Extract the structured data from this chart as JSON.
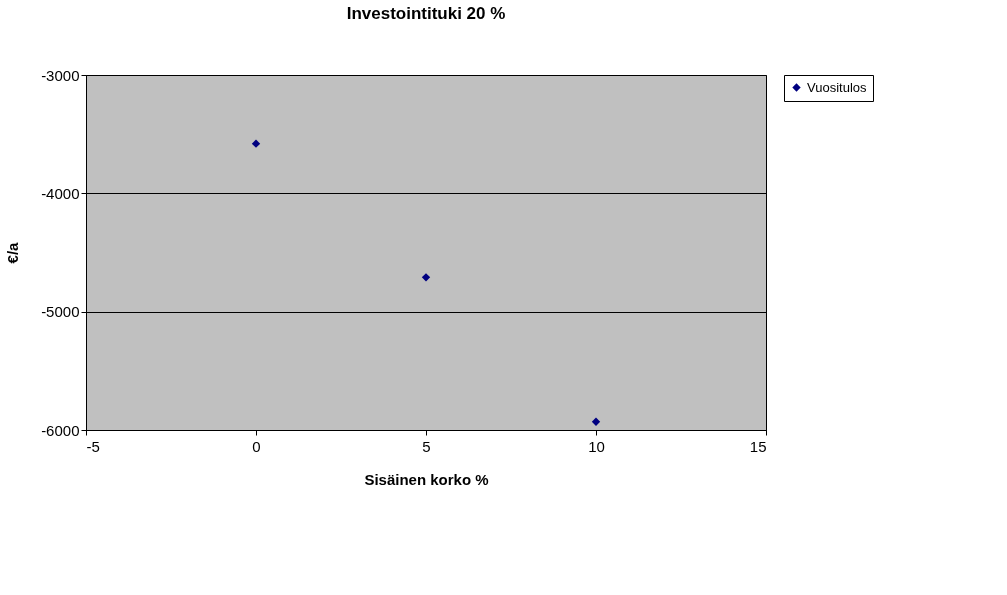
{
  "chart_data": {
    "type": "scatter",
    "title": "Investointituki 20 %",
    "xlabel": "Sisäinen korko %",
    "ylabel": "€/a",
    "x": [
      0,
      5,
      10
    ],
    "series": [
      {
        "name": "Vuositulos",
        "color": "#000080",
        "values": [
          -3580,
          -4710,
          -5930
        ]
      }
    ],
    "xlim": [
      -5,
      15
    ],
    "xticks": [
      -5,
      0,
      5,
      10,
      15
    ],
    "ylim": [
      -6000,
      -3000
    ],
    "yticks": [
      -6000,
      -5000,
      -4000,
      -3000
    ],
    "grid": "y",
    "legend": "right",
    "marker": "diamond"
  }
}
